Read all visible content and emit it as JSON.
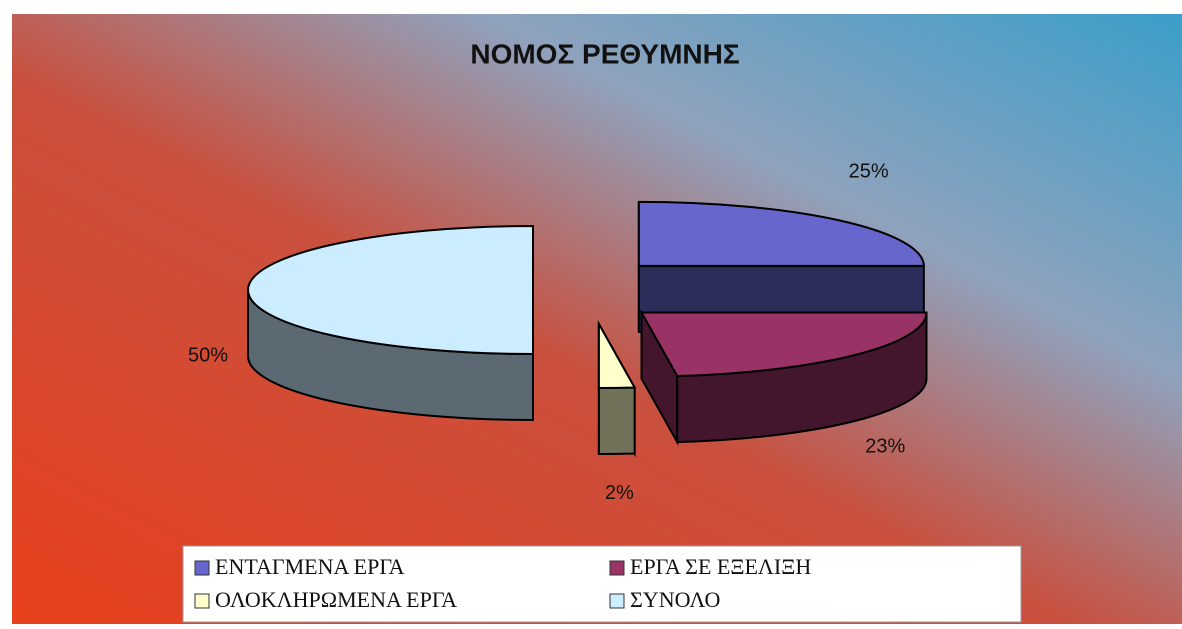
{
  "chart_data": {
    "type": "pie",
    "title": "ΝΟΜΟΣ ΡΕΘΥΜΝΗΣ",
    "categories": [
      "ΕΝΤΑΓΜΕΝΑ ΕΡΓΑ",
      "ΕΡΓΑ ΣΕ ΕΞΕΛΙΞΗ",
      "ΟΛΟΚΛΗΡΩΜΕΝΑ ΕΡΓΑ",
      "ΣΥΝΟΛΟ"
    ],
    "values": [
      25,
      23,
      2,
      50
    ],
    "value_labels": [
      "25%",
      "23%",
      "2%",
      "50%"
    ],
    "colors": [
      "#6666cc",
      "#993366",
      "#ffffcc",
      "#ccecff"
    ],
    "legend": "bottom"
  }
}
